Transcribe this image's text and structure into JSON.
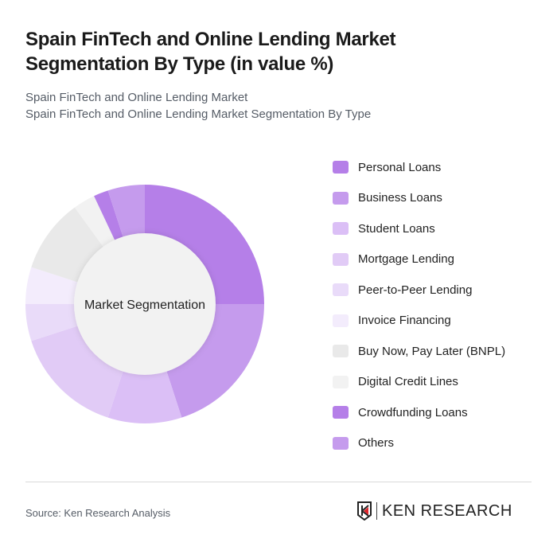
{
  "title": "Spain FinTech and Online Lending Market Segmentation By Type (in value %)",
  "subtitle1": "Spain FinTech and Online Lending Market",
  "subtitle2": "Spain FinTech and Online Lending Market Segmentation By Type",
  "source": "Source: Ken Research Analysis",
  "logo_text": "KEN RESEARCH",
  "chart_data": {
    "type": "pie",
    "variant": "donut",
    "center_label": "Market Segmentation",
    "legend_position": "right",
    "categories": [
      "Personal Loans",
      "Business Loans",
      "Student Loans",
      "Mortgage Lending",
      "Peer-to-Peer Lending",
      "Invoice Financing",
      "Buy Now, Pay Later (BNPL)",
      "Digital Credit Lines",
      "Crowdfunding Loans",
      "Others"
    ],
    "values": [
      25,
      20,
      10,
      15,
      5,
      5,
      10,
      3,
      2,
      5
    ],
    "colors": [
      "#b57fe8",
      "#c59bed",
      "#dbbff6",
      "#e1cbf6",
      "#e9dbf9",
      "#f3ecfc",
      "#e9e9e9",
      "#f2f2f2",
      "#b57fe8",
      "#c59bed"
    ]
  }
}
